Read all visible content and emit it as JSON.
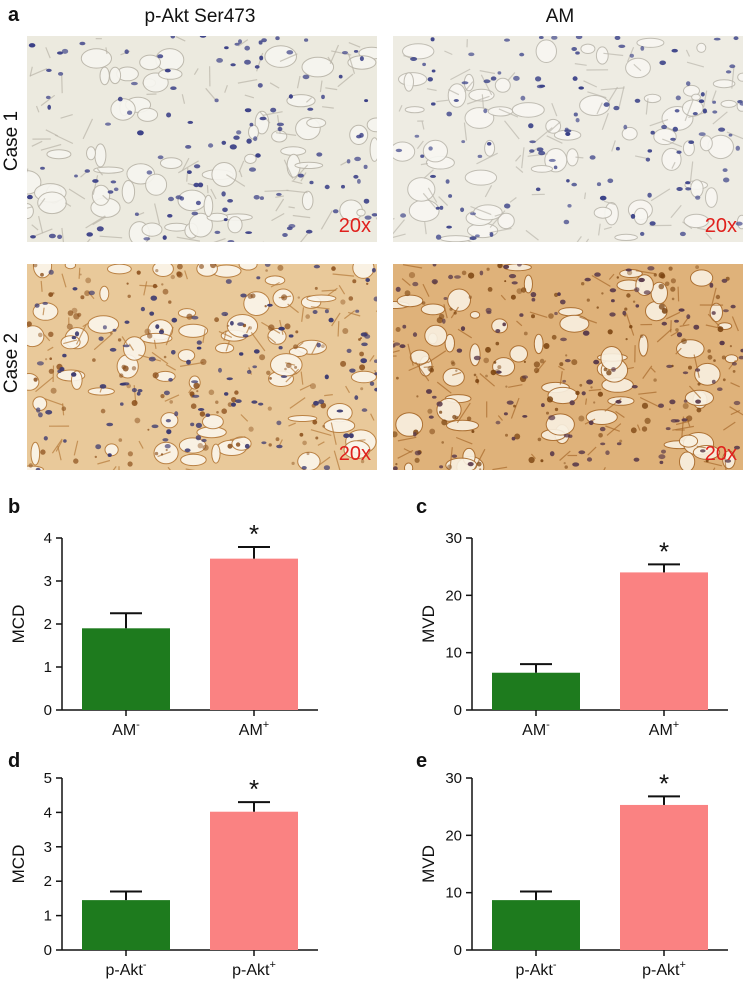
{
  "panel_a": {
    "letter": "a",
    "col_titles": [
      "p-Akt Ser473",
      "AM"
    ],
    "row_titles": [
      "Case 1",
      "Case 2"
    ],
    "magnification": "20x"
  },
  "chart_data": [
    {
      "panel": "b",
      "type": "bar",
      "categories": [
        {
          "base": "AM",
          "sup": "-"
        },
        {
          "base": "AM",
          "sup": "+"
        }
      ],
      "values": [
        1.9,
        3.52
      ],
      "errors": [
        0.35,
        0.27
      ],
      "colors": [
        "#1e7b1e",
        "#fa8282"
      ],
      "ylabel": "MCD",
      "ylim": [
        0,
        4
      ],
      "yticks": [
        0,
        1,
        2,
        3,
        4
      ],
      "significance": "*"
    },
    {
      "panel": "c",
      "type": "bar",
      "categories": [
        {
          "base": "AM",
          "sup": "-"
        },
        {
          "base": "AM",
          "sup": "+"
        }
      ],
      "values": [
        6.5,
        24.0
      ],
      "errors": [
        1.5,
        1.4
      ],
      "colors": [
        "#1e7b1e",
        "#fa8282"
      ],
      "ylabel": "MVD",
      "ylim": [
        0,
        30
      ],
      "yticks": [
        0,
        10,
        20,
        30
      ],
      "significance": "*"
    },
    {
      "panel": "d",
      "type": "bar",
      "categories": [
        {
          "base": "p-Akt",
          "sup": "-"
        },
        {
          "base": "p-Akt",
          "sup": "+"
        }
      ],
      "values": [
        1.45,
        4.02
      ],
      "errors": [
        0.25,
        0.28
      ],
      "colors": [
        "#1e7b1e",
        "#fa8282"
      ],
      "ylabel": "MCD",
      "ylim": [
        0,
        5
      ],
      "yticks": [
        0,
        1,
        2,
        3,
        4,
        5
      ],
      "significance": "*"
    },
    {
      "panel": "e",
      "type": "bar",
      "categories": [
        {
          "base": "p-Akt",
          "sup": "-"
        },
        {
          "base": "p-Akt",
          "sup": "+"
        }
      ],
      "values": [
        8.7,
        25.3
      ],
      "errors": [
        1.5,
        1.5
      ],
      "colors": [
        "#1e7b1e",
        "#fa8282"
      ],
      "ylabel": "MVD",
      "ylim": [
        0,
        30
      ],
      "yticks": [
        0,
        10,
        20,
        30
      ],
      "significance": "*"
    }
  ]
}
